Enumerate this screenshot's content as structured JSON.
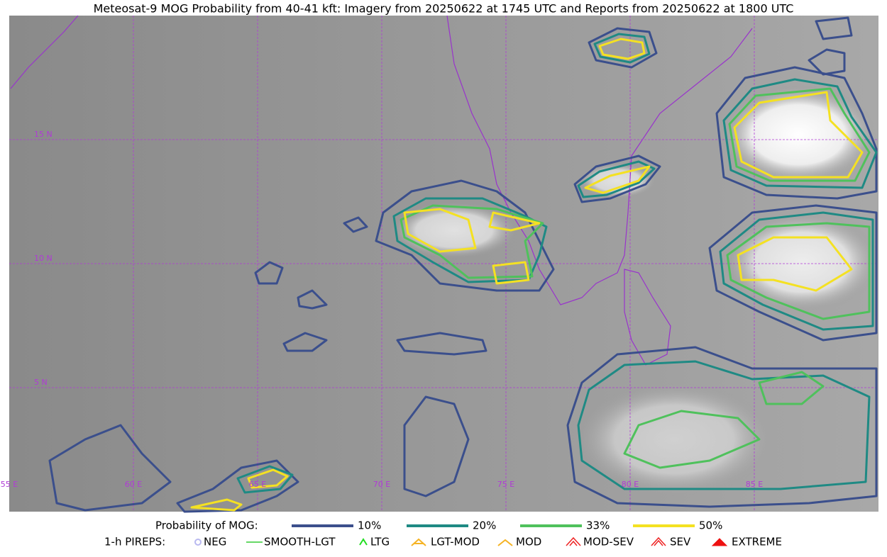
{
  "title": "Meteosat-9 MOG Probability from 40-41 kft: Imagery from 20250622 at 1745 UTC and Reports from 20250622 at 1800 UTC",
  "map": {
    "lat_labels": [
      "15 N",
      "10 N",
      "5 N"
    ],
    "lon_labels": [
      "55 E",
      "60 E",
      "65 E",
      "70 E",
      "75 E",
      "80 E",
      "85 E"
    ]
  },
  "legend": {
    "probability": {
      "label": "Probability of MOG:",
      "items": [
        {
          "label": "10%",
          "color": "#3b4f8c"
        },
        {
          "label": "20%",
          "color": "#1f8a84"
        },
        {
          "label": "33%",
          "color": "#4fc15c"
        },
        {
          "label": "50%",
          "color": "#f4e122"
        }
      ]
    },
    "pireps": {
      "label": "1-h PIREPS:",
      "items": [
        {
          "label": "NEG",
          "color": "#b9b9f0"
        },
        {
          "label": "SMOOTH-LGT",
          "color": "#33cc33"
        },
        {
          "label": "LTG",
          "color": "#22dd22"
        },
        {
          "label": "LGT-MOD",
          "color": "#f5b324"
        },
        {
          "label": "MOD",
          "color": "#f5b324"
        },
        {
          "label": "MOD-SEV",
          "color": "#ee2222"
        },
        {
          "label": "SEV",
          "color": "#ee2222"
        },
        {
          "label": "EXTREME",
          "color": "#ee1111"
        }
      ]
    }
  }
}
